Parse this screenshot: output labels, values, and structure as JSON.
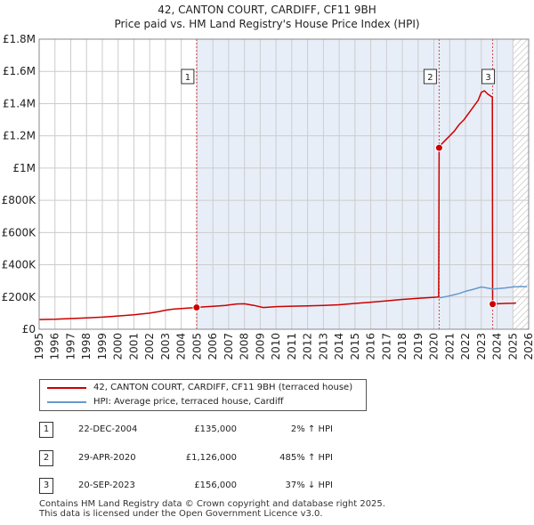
{
  "title_line1": "42, CANTON COURT, CARDIFF, CF11 9BH",
  "title_line2": "Price paid vs. HM Land Registry's House Price Index (HPI)",
  "legend": {
    "property_label": "42, CANTON COURT, CARDIFF, CF11 9BH (terraced house)",
    "hpi_label": "HPI: Average price, terraced house, Cardiff"
  },
  "transactions": [
    {
      "num": "1",
      "date": "22-DEC-2004",
      "price": "£135,000",
      "hpi": "2% ↑ HPI"
    },
    {
      "num": "2",
      "date": "29-APR-2020",
      "price": "£1,126,000",
      "hpi": "485% ↑ HPI"
    },
    {
      "num": "3",
      "date": "20-SEP-2023",
      "price": "£156,000",
      "hpi": "37% ↓ HPI"
    }
  ],
  "footer_line1": "Contains HM Land Registry data © Crown copyright and database right 2025.",
  "footer_line2": "This data is licensed under the Open Government Licence v3.0.",
  "colors": {
    "property": "#cc0000",
    "hpi": "#6699cc",
    "sale_line": "#cc0000",
    "shade": "#e8eef8",
    "grid": "#cccccc"
  },
  "chart_data": {
    "type": "line",
    "xlim": [
      1995,
      2026
    ],
    "ylim": [
      0,
      1800000
    ],
    "x_ticks": [
      1995,
      1996,
      1997,
      1998,
      1999,
      2000,
      2001,
      2002,
      2003,
      2004,
      2005,
      2006,
      2007,
      2008,
      2009,
      2010,
      2011,
      2012,
      2013,
      2014,
      2015,
      2016,
      2017,
      2018,
      2019,
      2020,
      2021,
      2022,
      2023,
      2024,
      2025,
      2026
    ],
    "y_ticks": [
      0,
      200000,
      400000,
      600000,
      800000,
      1000000,
      1200000,
      1400000,
      1600000,
      1800000
    ],
    "y_tick_labels": [
      "£0",
      "£200K",
      "£400K",
      "£600K",
      "£800K",
      "£1M",
      "£1.2M",
      "£1.4M",
      "£1.6M",
      "£1.8M"
    ],
    "shaded_from": 2004.97,
    "future_from": 2025.0,
    "sales": [
      {
        "num": "1",
        "x": 2004.97,
        "y": 135000
      },
      {
        "num": "2",
        "x": 2020.33,
        "y": 1126000
      },
      {
        "num": "3",
        "x": 2023.72,
        "y": 156000
      }
    ],
    "series": [
      {
        "name": "42, CANTON COURT, CARDIFF, CF11 9BH (terraced house)",
        "x": [
          1995.0,
          1996.0,
          1997.0,
          1998.0,
          1999.0,
          2000.0,
          2001.0,
          2002.0,
          2002.6,
          2003.0,
          2003.5,
          2004.0,
          2004.5,
          2004.97,
          2005.3,
          2006.0,
          2006.8,
          2007.5,
          2008.0,
          2008.6,
          2009.2,
          2010.0,
          2011.0,
          2012.0,
          2013.0,
          2014.0,
          2015.0,
          2016.0,
          2017.0,
          2018.0,
          2019.0,
          2020.0,
          2020.3,
          2020.33,
          2020.5,
          2020.8,
          2021.0,
          2021.3,
          2021.6,
          2021.9,
          2022.2,
          2022.5,
          2022.8,
          2023.0,
          2023.2,
          2023.4,
          2023.55,
          2023.7,
          2023.72,
          2024.0,
          2024.5,
          2025.0,
          2025.2
        ],
        "y": [
          60000,
          62000,
          66000,
          70000,
          75000,
          82000,
          90000,
          100000,
          110000,
          118000,
          125000,
          128000,
          132000,
          135000,
          138000,
          142000,
          148000,
          157000,
          158000,
          148000,
          135000,
          140000,
          143000,
          145000,
          148000,
          152000,
          160000,
          168000,
          176000,
          185000,
          192000,
          198000,
          200000,
          1126000,
          1150000,
          1180000,
          1200000,
          1230000,
          1270000,
          1300000,
          1340000,
          1380000,
          1420000,
          1470000,
          1480000,
          1460000,
          1450000,
          1440000,
          156000,
          158000,
          160000,
          162000,
          163000
        ]
      },
      {
        "name": "HPI: Average price, terraced house, Cardiff",
        "x": [
          2020.33,
          2020.8,
          2021.2,
          2021.6,
          2022.0,
          2022.5,
          2023.0,
          2023.4,
          2023.72,
          2024.0,
          2024.5,
          2025.0,
          2025.5,
          2025.9
        ],
        "y": [
          195000,
          203000,
          212000,
          222000,
          235000,
          248000,
          262000,
          255000,
          250000,
          252000,
          256000,
          262000,
          265000,
          264000
        ]
      }
    ]
  }
}
